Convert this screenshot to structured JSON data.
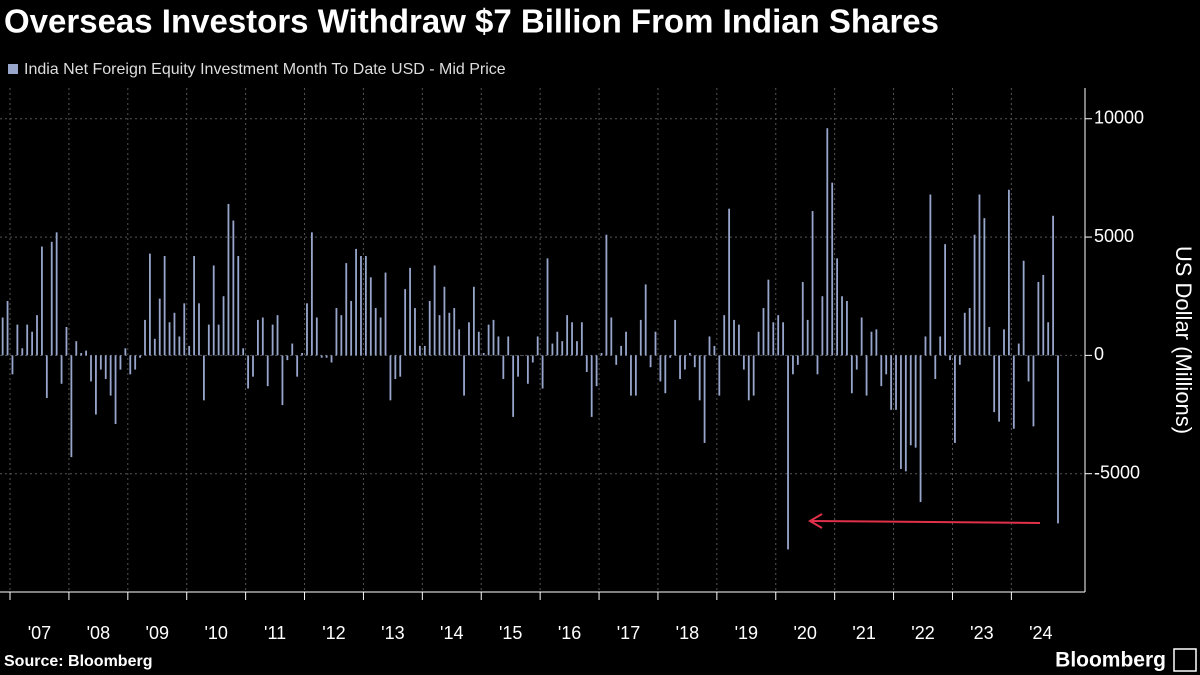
{
  "chart_data": {
    "type": "bar",
    "title": "Overseas Investors Withdraw $7 Billion From Indian Shares",
    "source": "Source: Bloomberg",
    "brand": "Bloomberg",
    "y_label": "US Dollar (Millions)",
    "ylim": [
      -10000,
      11300
    ],
    "yticks": [
      -5000,
      0,
      5000,
      10000
    ],
    "xlim": [
      2006.83,
      2025.25
    ],
    "xticks": [
      {
        "value": 2007,
        "label": "'07"
      },
      {
        "value": 2008,
        "label": "'08"
      },
      {
        "value": 2009,
        "label": "'09"
      },
      {
        "value": 2010,
        "label": "'10"
      },
      {
        "value": 2011,
        "label": "'11"
      },
      {
        "value": 2012,
        "label": "'12"
      },
      {
        "value": 2013,
        "label": "'13"
      },
      {
        "value": 2014,
        "label": "'14"
      },
      {
        "value": 2015,
        "label": "'15"
      },
      {
        "value": 2016,
        "label": "'16"
      },
      {
        "value": 2017,
        "label": "'17"
      },
      {
        "value": 2018,
        "label": "'18"
      },
      {
        "value": 2019,
        "label": "'19"
      },
      {
        "value": 2020,
        "label": "'20"
      },
      {
        "value": 2021,
        "label": "'21"
      },
      {
        "value": 2022,
        "label": "'22"
      },
      {
        "value": 2023,
        "label": "'23"
      },
      {
        "value": 2024,
        "label": "'24"
      }
    ],
    "grid": true,
    "x": [
      2006,
      2006,
      2007,
      2007,
      2007,
      2007,
      2007,
      2007,
      2007,
      2007,
      2007,
      2007,
      2007,
      2007,
      2008,
      2008,
      2008,
      2008,
      2008,
      2008,
      2008,
      2008,
      2008,
      2008,
      2008,
      2008,
      2009,
      2009,
      2009,
      2009,
      2009,
      2009,
      2009,
      2009,
      2009,
      2009,
      2009,
      2009,
      2010,
      2010,
      2010,
      2010,
      2010,
      2010,
      2010,
      2010,
      2010,
      2010,
      2010,
      2010,
      2011,
      2011,
      2011,
      2011,
      2011,
      2011,
      2011,
      2011,
      2011,
      2011,
      2011,
      2011,
      2012,
      2012,
      2012,
      2012,
      2012,
      2012,
      2012,
      2012,
      2012,
      2012,
      2012,
      2012,
      2013,
      2013,
      2013,
      2013,
      2013,
      2013,
      2013,
      2013,
      2013,
      2013,
      2013,
      2013,
      2014,
      2014,
      2014,
      2014,
      2014,
      2014,
      2014,
      2014,
      2014,
      2014,
      2014,
      2014,
      2015,
      2015,
      2015,
      2015,
      2015,
      2015,
      2015,
      2015,
      2015,
      2015,
      2015,
      2015,
      2016,
      2016,
      2016,
      2016,
      2016,
      2016,
      2016,
      2016,
      2016,
      2016,
      2016,
      2016,
      2017,
      2017,
      2017,
      2017,
      2017,
      2017,
      2017,
      2017,
      2017,
      2017,
      2017,
      2017,
      2018,
      2018,
      2018,
      2018,
      2018,
      2018,
      2018,
      2018,
      2018,
      2018,
      2018,
      2018,
      2019,
      2019,
      2019,
      2019,
      2019,
      2019,
      2019,
      2019,
      2019,
      2019,
      2019,
      2019,
      2020,
      2020,
      2020,
      2020,
      2020,
      2020,
      2020,
      2020,
      2020,
      2020,
      2020,
      2020,
      2021,
      2021,
      2021,
      2021,
      2021,
      2021,
      2021,
      2021,
      2021,
      2021,
      2021,
      2021,
      2022,
      2022,
      2022,
      2022,
      2022,
      2022,
      2022,
      2022,
      2022,
      2022,
      2022,
      2022,
      2023,
      2023,
      2023,
      2023,
      2023,
      2023,
      2023,
      2023,
      2023,
      2023,
      2023,
      2023,
      2024,
      2024,
      2024,
      2024,
      2024,
      2024,
      2024,
      2024,
      2024,
      2024
    ],
    "series": [
      {
        "name": "India Net Foreign Equity Investment Month To Date USD - Mid Price",
        "color": "#98a6cc",
        "values": [
          1600,
          2300,
          -800,
          1300,
          300,
          1300,
          1000,
          1700,
          4600,
          -1800,
          4800,
          5200,
          -1200,
          1200,
          -4300,
          600,
          100,
          200,
          -1100,
          -2500,
          -600,
          -1000,
          -1700,
          -2900,
          -600,
          300,
          -800,
          -600,
          -100,
          1500,
          4300,
          700,
          2400,
          4200,
          1400,
          1800,
          800,
          2200,
          400,
          4200,
          2200,
          -1900,
          1300,
          3800,
          1300,
          2500,
          6400,
          5700,
          4200,
          300,
          -1400,
          -900,
          1500,
          1600,
          -1300,
          1300,
          1700,
          -2100,
          -200,
          500,
          -900,
          100,
          2200,
          5200,
          1600,
          -100,
          -100,
          -300,
          2000,
          1700,
          3900,
          2300,
          4500,
          4200,
          4200,
          3300,
          2000,
          1600,
          3500,
          -1900,
          -1000,
          -900,
          2800,
          3700,
          2000,
          400,
          400,
          2300,
          3800,
          1700,
          2900,
          1800,
          2000,
          1100,
          -1700,
          1400,
          2900,
          1000,
          100,
          1300,
          1500,
          800,
          -1000,
          800,
          -2600,
          -900,
          0,
          -1200,
          -300,
          800,
          -1400,
          4100,
          500,
          1000,
          600,
          1700,
          1400,
          600,
          1400,
          -700,
          -2600,
          -1300,
          100,
          5100,
          1600,
          -400,
          400,
          1000,
          -1700,
          -1700,
          1500,
          3000,
          -500,
          1000,
          -1100,
          -1600,
          -100,
          1500,
          -1000,
          -600,
          100,
          -500,
          -1900,
          -3700,
          800,
          400,
          -1700,
          1700,
          6200,
          1500,
          1300,
          -600,
          -1900,
          -1700,
          1000,
          2000,
          3200,
          1400,
          1700,
          1400,
          -8200,
          -800,
          -400,
          3100,
          1500,
          6100,
          -800,
          2500,
          9600,
          7300,
          4100,
          2500,
          2300,
          -1600,
          -600,
          1600,
          -1700,
          1000,
          1100,
          -1300,
          -800,
          -2300,
          -2300,
          -4800,
          -4900,
          -3800,
          -3900,
          -6200,
          800,
          6800,
          -1000,
          800,
          4700,
          -200,
          -3700,
          -400,
          1800,
          2000,
          5100,
          6800,
          5800,
          1200,
          -2400,
          -2800,
          1100,
          7000,
          -3100,
          500,
          4000,
          -1100,
          -3000,
          3100,
          3400,
          1400,
          5900,
          -7100
        ]
      }
    ]
  }
}
